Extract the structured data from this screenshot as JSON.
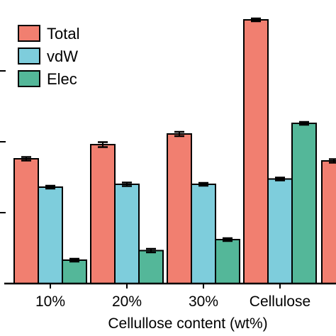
{
  "chart_data": {
    "type": "bar",
    "title": "",
    "xlabel": "Cellullose content (wt%)",
    "ylabel": "",
    "categories": [
      "10%",
      "20%",
      "30%",
      "Cellulose",
      ""
    ],
    "series": [
      {
        "name": "Total",
        "color": "#f17f70",
        "values": [
          3.52,
          3.92,
          4.22,
          7.44,
          3.46
        ],
        "errors": [
          0.05,
          0.07,
          0.06,
          0.04,
          0.05
        ]
      },
      {
        "name": "vdW",
        "color": "#7ecddc",
        "values": [
          2.72,
          2.8,
          2.8,
          2.95,
          null
        ],
        "errors": [
          0.04,
          0.05,
          0.04,
          0.04,
          null
        ]
      },
      {
        "name": "Elec",
        "color": "#54b799",
        "values": [
          0.66,
          0.93,
          1.24,
          4.52,
          null
        ],
        "errors": [
          0.04,
          0.05,
          0.04,
          0.04,
          null
        ]
      }
    ],
    "ylim": [
      0,
      7.6
    ],
    "legend_position": "top-left",
    "grid": false
  }
}
